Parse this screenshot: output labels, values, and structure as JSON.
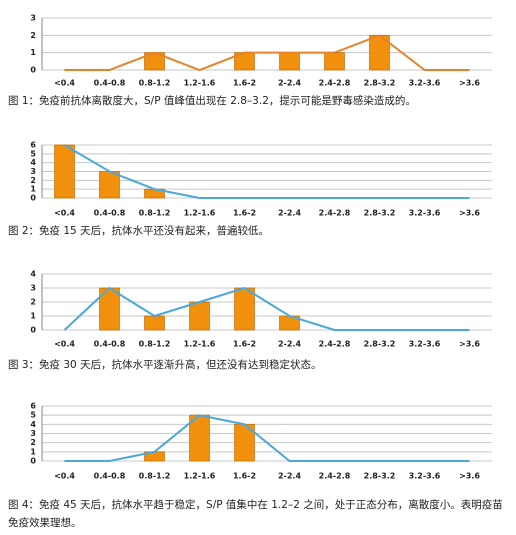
{
  "chart_data": [
    {
      "type": "bar",
      "caption": "图 1：免疫前抗体离散度大，S/P 值峰值出现在 2.8–3.2，提示可能是野毒感染造成的。",
      "categories": [
        "<0.4",
        "0.4-0.8",
        "0.8-1.2",
        "1.2-1.6",
        "1.6-2",
        "2-2.4",
        "2.4-2.8",
        "2.8-3.2",
        "3.2-3.6",
        ">3.6"
      ],
      "series": [
        {
          "type": "bar",
          "color": "#f0900c",
          "values": [
            0,
            0,
            1,
            0,
            1,
            1,
            1,
            2,
            0,
            0
          ]
        },
        {
          "type": "line",
          "color": "#e8822a",
          "values": [
            0,
            0,
            1,
            0,
            1,
            1,
            1,
            2,
            0,
            0
          ]
        }
      ],
      "ylim": [
        0,
        3
      ],
      "yticks": [
        0,
        1,
        2,
        3
      ],
      "grid": true
    },
    {
      "type": "bar",
      "caption": "图 2：免疫 15 天后，抗体水平还没有起来，普遍较低。",
      "categories": [
        "<0.4",
        "0.4-0.8",
        "0.8-1.2",
        "1.2-1.6",
        "1.6-2",
        "2-2.4",
        "2.4-2.8",
        "2.8-3.2",
        "3.2-3.6",
        ">3.6"
      ],
      "series": [
        {
          "type": "bar",
          "color": "#f0900c",
          "values": [
            6,
            3,
            1,
            0,
            0,
            0,
            0,
            0,
            0,
            0
          ]
        },
        {
          "type": "line",
          "color": "#4aa8dc",
          "values": [
            6,
            3,
            1,
            0,
            0,
            0,
            0,
            0,
            0,
            0
          ]
        }
      ],
      "ylim": [
        0,
        6
      ],
      "yticks": [
        0,
        1,
        2,
        3,
        4,
        5,
        6
      ],
      "grid": true
    },
    {
      "type": "bar",
      "caption": "图 3：免疫 30 天后，抗体水平逐渐升高，但还没有达到稳定状态。",
      "categories": [
        "<0.4",
        "0.4-0.8",
        "0.8-1.2",
        "1.2-1.6",
        "1.6-2",
        "2-2.4",
        "2.4-2.8",
        "2.8-3.2",
        "3.2-3.6",
        ">3.6"
      ],
      "series": [
        {
          "type": "bar",
          "color": "#f0900c",
          "values": [
            0,
            3,
            1,
            2,
            3,
            1,
            0,
            0,
            0,
            0
          ]
        },
        {
          "type": "line",
          "color": "#4aa8dc",
          "values": [
            0,
            3,
            1,
            2,
            3,
            1,
            0,
            0,
            0,
            0
          ]
        }
      ],
      "ylim": [
        0,
        4
      ],
      "yticks": [
        0,
        1,
        2,
        3,
        4
      ],
      "grid": true
    },
    {
      "type": "bar",
      "caption": "图 4：免疫 45 天后，抗体水平趋于稳定，S/P 值集中在 1.2–2 之间，处于正态分布，离散度小。表明疫苗免疫效果理想。",
      "categories": [
        "<0.4",
        "0.4-0.8",
        "0.8-1.2",
        "1.2-1.6",
        "1.6-2",
        "2-2.4",
        "2.4-2.8",
        "2.8-3.2",
        "3.2-3.6",
        ">3.6"
      ],
      "series": [
        {
          "type": "bar",
          "color": "#f0900c",
          "values": [
            0,
            0,
            1,
            5,
            4,
            0,
            0,
            0,
            0,
            0
          ]
        },
        {
          "type": "line",
          "color": "#4aa8dc",
          "values": [
            0,
            0,
            1,
            5,
            4,
            0,
            0,
            0,
            0,
            0
          ]
        }
      ],
      "ylim": [
        0,
        6
      ],
      "yticks": [
        0,
        1,
        2,
        3,
        4,
        5,
        6
      ],
      "grid": true
    }
  ]
}
